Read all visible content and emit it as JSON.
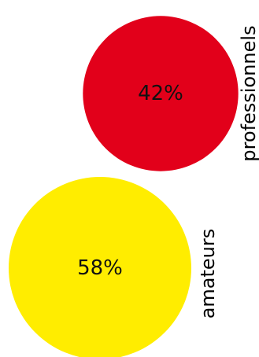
{
  "chart_data": {
    "type": "bubble",
    "series": [
      {
        "category": "professionnels",
        "value": 42,
        "value_label": "42%",
        "color": "#e2001a"
      },
      {
        "category": "amateurs",
        "value": 58,
        "value_label": "58%",
        "color": "#ffed00"
      }
    ]
  }
}
